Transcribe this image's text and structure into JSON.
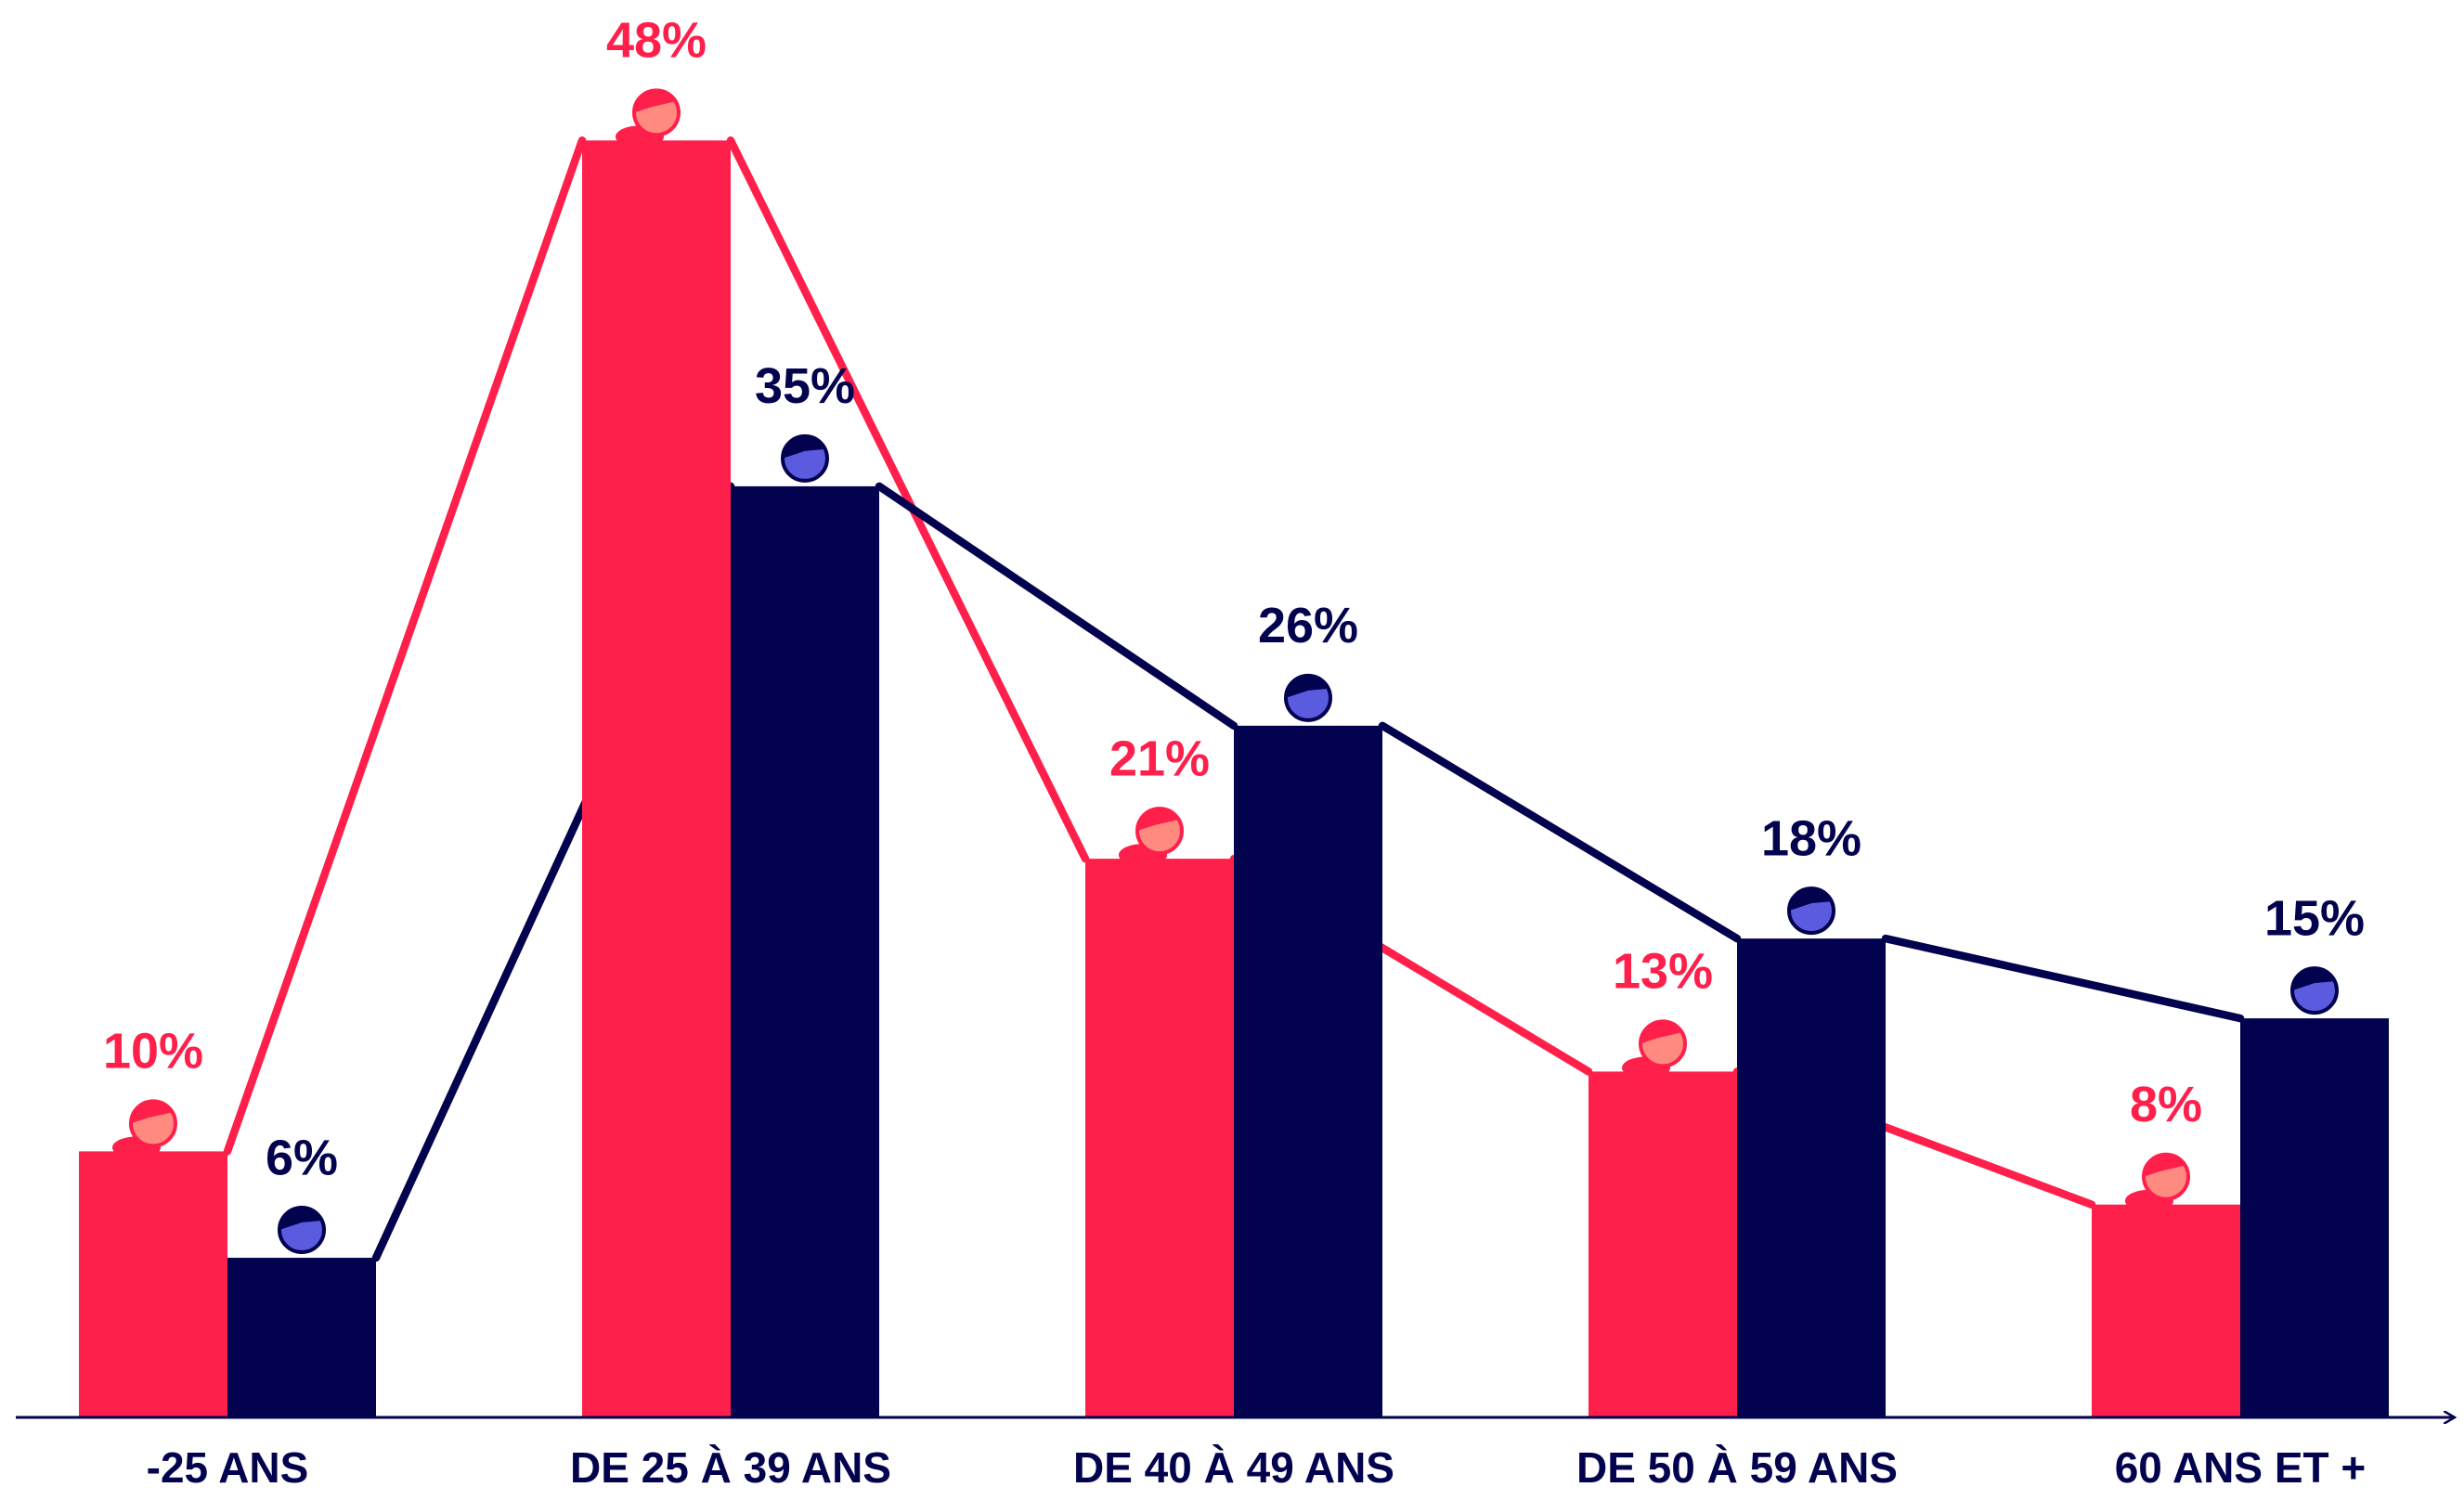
{
  "chart_data": {
    "type": "bar",
    "categories": [
      "-25 ANS",
      "DE 25 À 39 ANS",
      "DE 40 À 49 ANS",
      "DE 50 À 59 ANS",
      "60 ANS ET +"
    ],
    "series": [
      {
        "color": "#ff1f4b",
        "values": [
          10,
          48,
          21,
          13,
          8
        ],
        "value_labels": [
          "10%",
          "48%",
          "21%",
          "13%",
          "8%"
        ]
      },
      {
        "color": "#02024e",
        "values": [
          6,
          35,
          26,
          18,
          15
        ],
        "value_labels": [
          "6%",
          "35%",
          "26%",
          "18%",
          "15%"
        ]
      }
    ],
    "ylim": [
      0,
      50
    ]
  }
}
